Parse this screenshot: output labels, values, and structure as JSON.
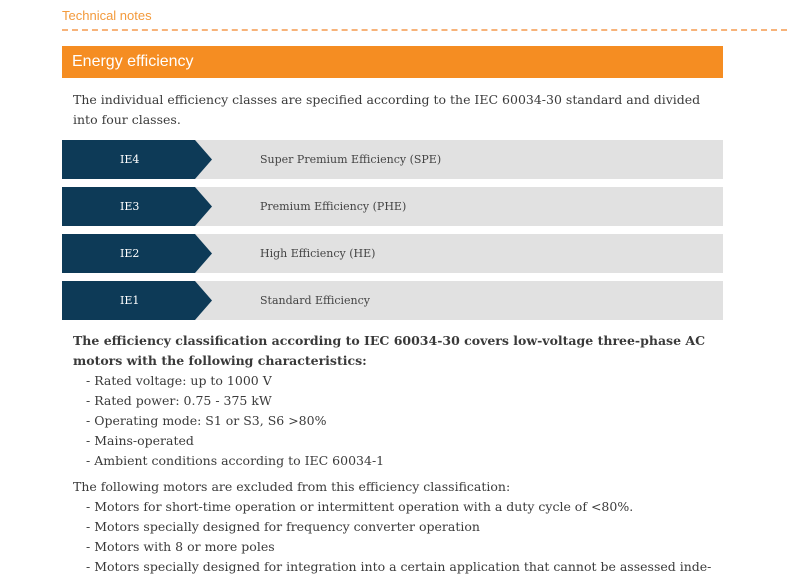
{
  "section_label": "Technical notes",
  "heading": "Energy efficiency",
  "intro": "The individual efficiency classes are specified according to the IEC 60034-30 standard and divided into four classes.",
  "classes": [
    {
      "code": "IE4",
      "name": "Super Premium Efficiency (SPE)"
    },
    {
      "code": "IE3",
      "name": "Premium Efficiency (PHE)"
    },
    {
      "code": "IE2",
      "name": "High Efficiency (HE)"
    },
    {
      "code": "IE1",
      "name": "Standard Efficiency"
    }
  ],
  "characteristics_title": "The efficiency classification according to IEC 60034-30 covers low-voltage three-phase AC motors with the following characteristics:",
  "characteristics": [
    "- Rated voltage: up to 1000 V",
    "- Rated power: 0.75 - 375 kW",
    "- Operating mode: S1 or S3, S6 >80%",
    "- Mains-operated",
    "- Ambient conditions according to IEC 60034-1"
  ],
  "exclusions_title": "The following motors are excluded from this efficiency classification:",
  "exclusions": [
    "- Motors for short-time operation or intermittent operation with a duty cycle of <80%.",
    "- Motors specially designed for frequency converter operation",
    "- Motors with 8 or more poles",
    "- Motors specially designed for integration into a certain application that cannot be assessed inde-"
  ],
  "colors": {
    "accent": "#f58d22",
    "dark": "#0d3a57",
    "row_bg": "#e1e1e1"
  }
}
